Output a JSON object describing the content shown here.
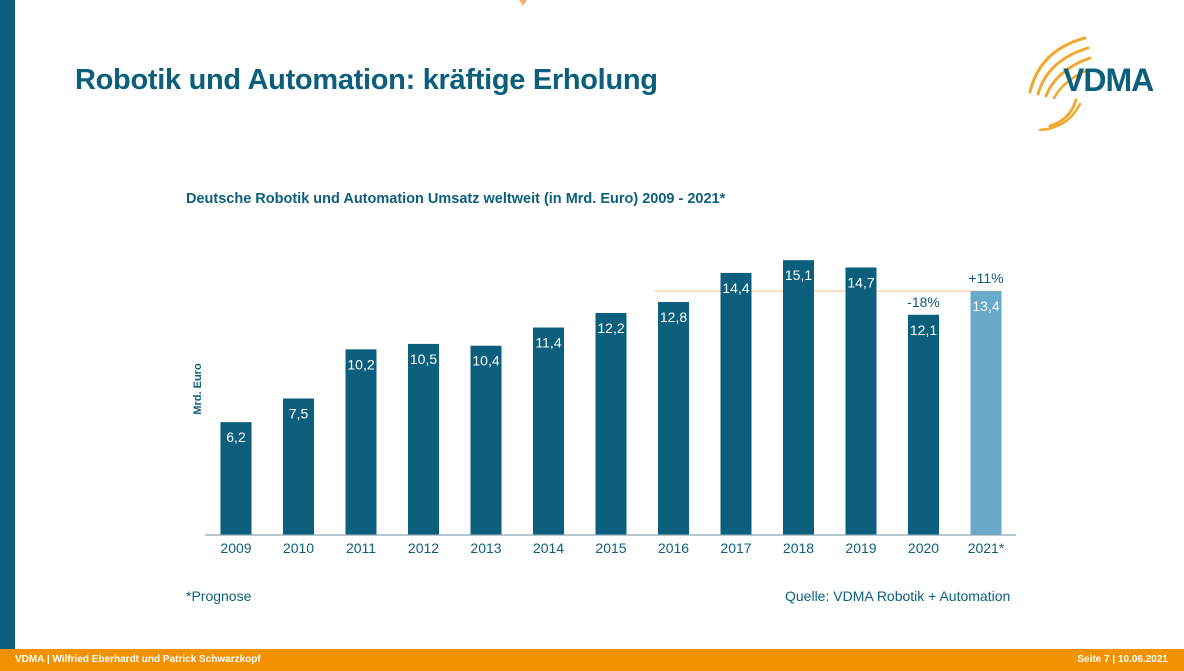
{
  "slide": {
    "title": "Robotik und Automation: kräftige Erholung",
    "logo_text": "VDMA",
    "footnote": "*Prognose",
    "source": "Quelle: VDMA Robotik + Automation"
  },
  "footer": {
    "left": "VDMA | Wilfried Eberhardt und Patrick Schwarzkopf",
    "right": "Seite 7 | 10.06.2021"
  },
  "colors": {
    "primary": "#0b5f7c",
    "forecast": "#69a9c9",
    "accent": "#f39200",
    "reference_line": "#f0c28e"
  },
  "chart_data": {
    "type": "bar",
    "title": "Deutsche Robotik und Automation Umsatz weltweit (in Mrd. Euro) 2009 - 2021*",
    "xlabel": "",
    "ylabel": "Mrd. Euro",
    "ylim": [
      0,
      15.1
    ],
    "grid": false,
    "categories": [
      "2009",
      "2010",
      "2011",
      "2012",
      "2013",
      "2014",
      "2015",
      "2016",
      "2017",
      "2018",
      "2019",
      "2020",
      "2021*"
    ],
    "values": [
      6.2,
      7.5,
      10.2,
      10.5,
      10.4,
      11.4,
      12.2,
      12.8,
      14.4,
      15.1,
      14.7,
      12.1,
      13.4
    ],
    "value_labels": [
      "6,2",
      "7,5",
      "10,2",
      "10,5",
      "10,4",
      "11,4",
      "12,2",
      "12,8",
      "14,4",
      "15,1",
      "14,7",
      "12,1",
      "13,4"
    ],
    "forecast": [
      false,
      false,
      false,
      false,
      false,
      false,
      false,
      false,
      false,
      false,
      false,
      false,
      true
    ],
    "annotations": [
      {
        "category": "2020",
        "text": "-18%"
      },
      {
        "category": "2021*",
        "text": "+11%"
      }
    ],
    "reference_line": {
      "value": 13.4,
      "from_category": "2016",
      "to_category": "2021*"
    }
  }
}
